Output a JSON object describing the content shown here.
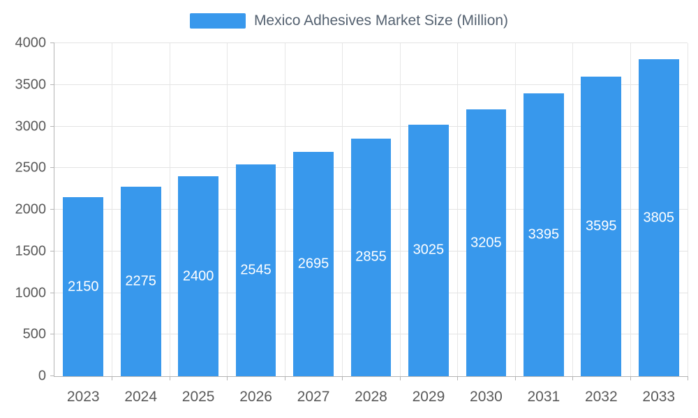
{
  "chart_data": {
    "type": "bar",
    "title": "Mexico Adhesives Market Size (Million)",
    "categories": [
      "2023",
      "2024",
      "2025",
      "2026",
      "2027",
      "2028",
      "2029",
      "2030",
      "2031",
      "2032",
      "2033"
    ],
    "values": [
      2150,
      2275,
      2400,
      2545,
      2695,
      2855,
      3025,
      3205,
      3395,
      3595,
      3805
    ],
    "ylim": [
      0,
      4000
    ],
    "yticks": [
      0,
      500,
      1000,
      1500,
      2000,
      2500,
      3000,
      3500,
      4000
    ],
    "xlabel": "",
    "ylabel": "",
    "grid": true,
    "legend_position": "top-center",
    "bar_color": "#3898ec",
    "value_label_color": "#ffffff",
    "axis_label_color": "#595959"
  },
  "legend": {
    "label": "Mexico Adhesives Market Size (Million)"
  }
}
